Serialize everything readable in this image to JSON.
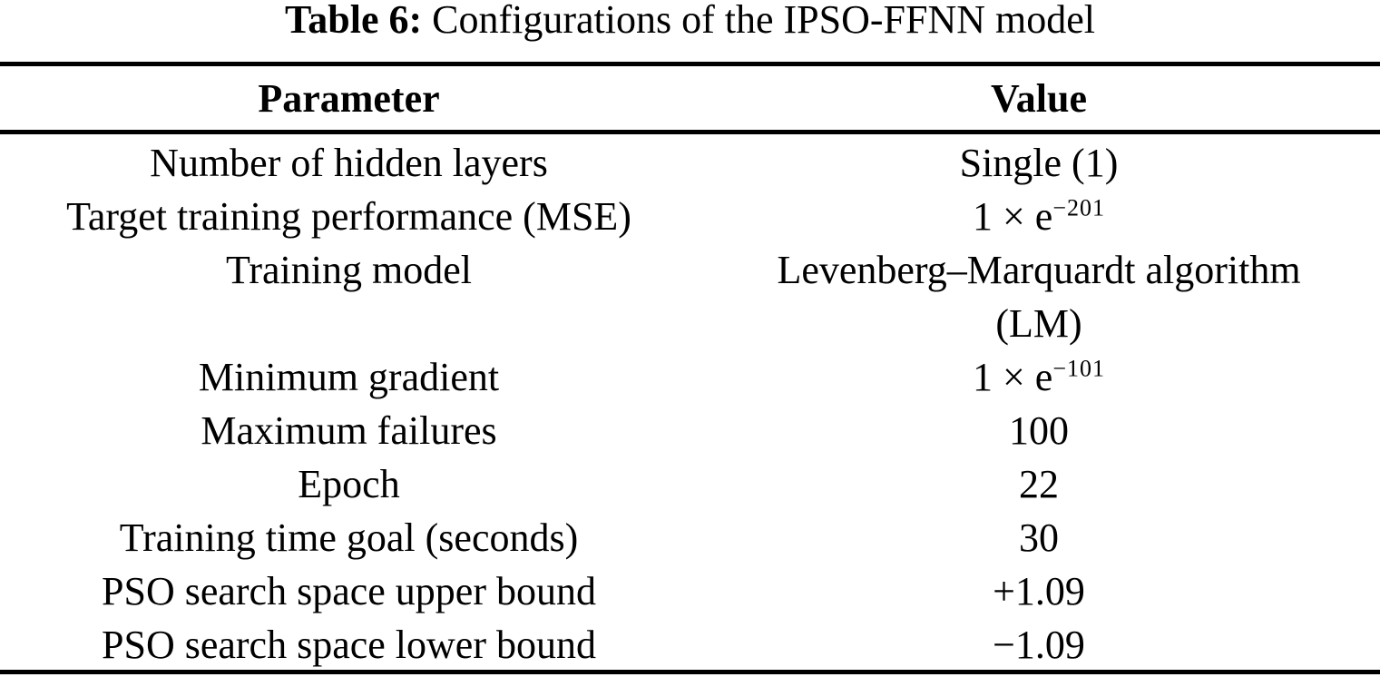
{
  "colors": {
    "background": "#ffffff",
    "text": "#000000",
    "rule": "#000000"
  },
  "caption": {
    "label": "Table 6:",
    "text": "Configurations of the IPSO-FFNN model"
  },
  "table": {
    "headers": [
      "Parameter",
      "Value"
    ],
    "rows": [
      {
        "param": "Number of hidden layers",
        "value": "Single (1)"
      },
      {
        "param": "Target training performance (MSE)",
        "value": "1 × e",
        "value_sup": "−201"
      },
      {
        "param": "Training model",
        "value": "Levenberg–Marquardt algorithm",
        "value_line2": "(LM)"
      },
      {
        "param": "Minimum gradient",
        "value": "1 × e",
        "value_sup": "−101"
      },
      {
        "param": "Maximum failures",
        "value": "100"
      },
      {
        "param": "Epoch",
        "value": "22"
      },
      {
        "param": "Training time goal (seconds)",
        "value": "30"
      },
      {
        "param": "PSO search space upper bound",
        "value": "+1.09"
      },
      {
        "param": "PSO search space lower bound",
        "value": "−1.09"
      }
    ]
  }
}
